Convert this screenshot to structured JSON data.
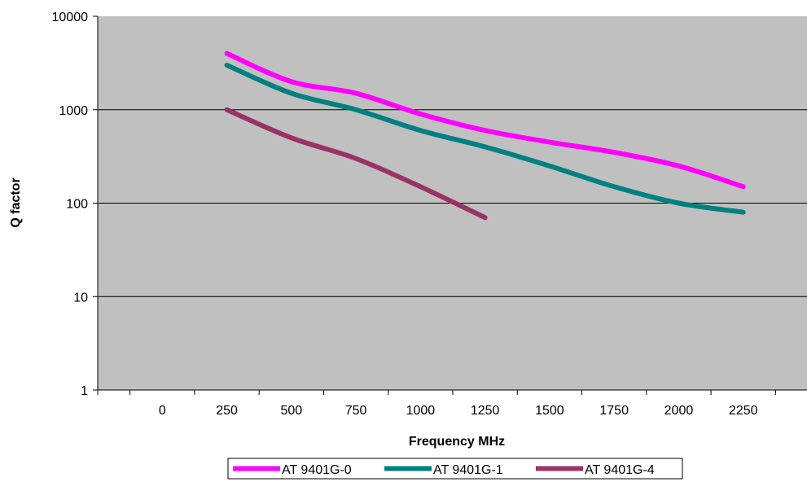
{
  "chart_data": {
    "type": "line",
    "title": "",
    "xlabel": "Frequency MHz",
    "ylabel": "Q factor",
    "y_scale": "log",
    "ylim": [
      1,
      10000
    ],
    "xlim": [
      -250,
      2500
    ],
    "x_ticks": [
      "0",
      "250",
      "500",
      "750",
      "1000",
      "1250",
      "1500",
      "1750",
      "2000",
      "2250"
    ],
    "y_ticks": [
      "1",
      "10",
      "100",
      "1000",
      "10000"
    ],
    "grid": "horizontal",
    "plot_background": "#c0c0c0",
    "legend": "bottom",
    "series": [
      {
        "name": "AT 9401G-0",
        "color": "#ff00ff",
        "x": [
          250,
          500,
          750,
          1000,
          1250,
          1500,
          1750,
          2000,
          2250
        ],
        "y": [
          4000,
          2000,
          1500,
          900,
          600,
          450,
          350,
          250,
          150
        ]
      },
      {
        "name": "AT 9401G-1",
        "color": "#008080",
        "x": [
          250,
          500,
          750,
          1000,
          1250,
          1500,
          1750,
          2000,
          2250
        ],
        "y": [
          3000,
          1500,
          1000,
          600,
          400,
          250,
          150,
          100,
          80
        ]
      },
      {
        "name": "AT 9401G-4",
        "color": "#993366",
        "x": [
          250,
          500,
          750,
          1000,
          1250
        ],
        "y": [
          1000,
          500,
          300,
          150,
          70
        ]
      }
    ]
  }
}
